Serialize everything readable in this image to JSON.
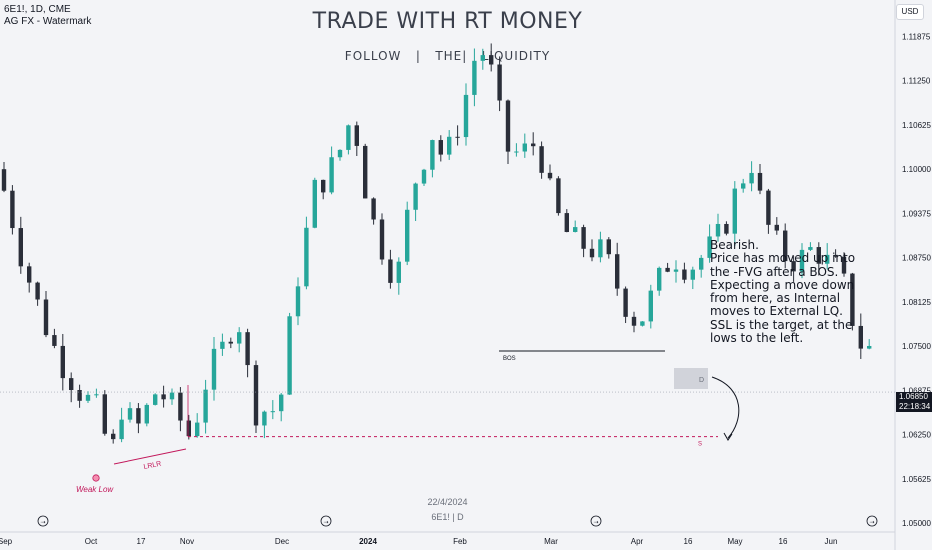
{
  "header": {
    "symbol_line": "6E1!, 1D, CME",
    "indicator_line": "AG FX - Watermark"
  },
  "watermark": {
    "title": "TRADE WITH RT MONEY",
    "subtitle": "FOLLOW   |   THE|   LIQUIDITY"
  },
  "note": {
    "lines": [
      "Bearish.",
      "Price has moved up into",
      "the -FVG after a BOS.",
      "Expecting a move down",
      "from here, as Internal",
      "moves to External LQ.",
      "SSL is the target, at the",
      "lows to the left."
    ]
  },
  "footer": {
    "date": "22/4/2024",
    "symbol": "6E1! | D"
  },
  "price_scale": {
    "currency_button": "USD",
    "current_price": "1.06850",
    "countdown": "22:18:34"
  },
  "colors": {
    "up": "#26a69a",
    "down": "#2a2e39",
    "annotation": "#c2185b",
    "bos_line": "#131722",
    "background": "#f3f4f7"
  },
  "chart_data": {
    "type": "candlestick",
    "x_axis_labels": [
      "Sep",
      "Oct",
      "17",
      "Nov",
      "Dec",
      "2024",
      "Feb",
      "Mar",
      "Apr",
      "16",
      "May",
      "16",
      "Jun"
    ],
    "y_axis_ticks": [
      "1.11875",
      "1.11250",
      "1.10625",
      "1.10000",
      "1.09375",
      "1.08750",
      "1.08125",
      "1.07500",
      "1.06875",
      "1.06250",
      "1.05625",
      "1.05000"
    ],
    "ylim": [
      1.05,
      1.1225
    ],
    "price_line": 1.0685,
    "annotations": {
      "weak_low": "Weak Low",
      "lrlr": "LRLR",
      "bos": "BOS",
      "ssl_marker": "S",
      "fvg_label": "D"
    },
    "levels": {
      "bos": 1.0743,
      "ssl": 1.0622
    },
    "close_path": [
      [
        0,
        1.1
      ],
      [
        6,
        1.094
      ],
      [
        12,
        1.087
      ],
      [
        20,
        1.08
      ],
      [
        28,
        1.074
      ],
      [
        38,
        1.069
      ],
      [
        47,
        1.066
      ],
      [
        52,
        1.0615
      ],
      [
        54,
        1.0585
      ],
      [
        58,
        1.067
      ],
      [
        66,
        1.063
      ],
      [
        76,
        1.069
      ],
      [
        84,
        1.066
      ],
      [
        92,
        1.062
      ],
      [
        100,
        1.071
      ],
      [
        108,
        1.075
      ],
      [
        114,
        1.08
      ],
      [
        122,
        1.066
      ],
      [
        134,
        1.066
      ],
      [
        141,
        1.082
      ],
      [
        151,
        1.097
      ],
      [
        161,
        1.101
      ],
      [
        169,
        1.108
      ],
      [
        177,
        1.094
      ],
      [
        183,
        1.089
      ],
      [
        190,
        1.084
      ],
      [
        197,
        1.097
      ],
      [
        207,
        1.105
      ],
      [
        213,
        1.101
      ],
      [
        221,
        1.108
      ],
      [
        229,
        1.118
      ],
      [
        237,
        1.112
      ],
      [
        241,
        1.103
      ],
      [
        249,
        1.102
      ],
      [
        257,
        1.104
      ],
      [
        265,
        1.094
      ],
      [
        273,
        1.09
      ],
      [
        281,
        1.089
      ],
      [
        289,
        1.088
      ],
      [
        297,
        1.082
      ],
      [
        305,
        1.078
      ],
      [
        313,
        1.083
      ],
      [
        321,
        1.088
      ],
      [
        329,
        1.086
      ],
      [
        337,
        1.088
      ],
      [
        345,
        1.091
      ],
      [
        353,
        1.098
      ],
      [
        359,
        1.101
      ],
      [
        365,
        1.093
      ],
      [
        373,
        1.088
      ],
      [
        381,
        1.087
      ],
      [
        389,
        1.089
      ],
      [
        397,
        1.086
      ],
      [
        401,
        1.086
      ],
      [
        405,
        1.081
      ],
      [
        410,
        1.076
      ],
      [
        413,
        1.074
      ],
      [
        415,
        1.0745
      ]
    ]
  }
}
